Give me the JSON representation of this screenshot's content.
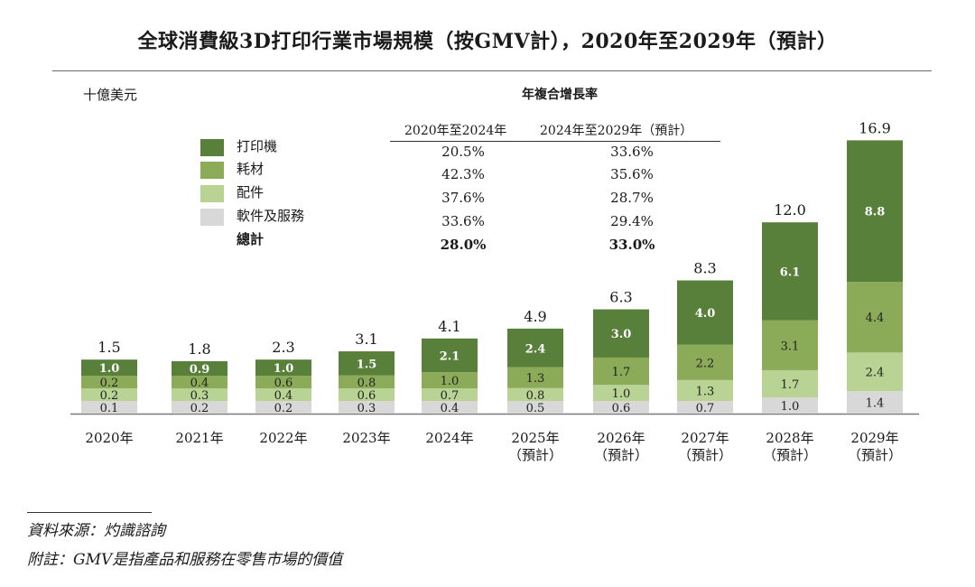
{
  "title": "全球消費級3D打印行業市場規模（按GMV計），2020年至2029年（預計）",
  "unit": "十億美元",
  "colors": {
    "printer": "#58803a",
    "consumables": "#8cab58",
    "accessories": "#b8d393",
    "software": "#d8d8d8",
    "axis": "#7a7a7a"
  },
  "cagr": {
    "title": "年複合增長率",
    "headers": [
      "2020年至2024年",
      "2024年至2029年（預計）"
    ],
    "rows": [
      {
        "label": "打印機",
        "a": "20.5%",
        "b": "33.6%"
      },
      {
        "label": "耗材",
        "a": "42.3%",
        "b": "35.6%"
      },
      {
        "label": "配件",
        "a": "37.6%",
        "b": "28.7%"
      },
      {
        "label": "軟件及服務",
        "a": "33.6%",
        "b": "29.4%"
      },
      {
        "label": "總計",
        "a": "28.0%",
        "b": "33.0%"
      }
    ]
  },
  "chart_data": {
    "type": "bar",
    "stacked": true,
    "title": "全球消費級3D打印行業市場規模（按GMV計），2020年至2029年（預計）",
    "ylabel": "十億美元",
    "ylim": [
      0,
      17
    ],
    "categories": [
      "2020年",
      "2021年",
      "2022年",
      "2023年",
      "2024年",
      "2025年\n（預計）",
      "2026年\n（預計）",
      "2027年\n（預計）",
      "2028年\n（預計）",
      "2029年\n（預計）"
    ],
    "series": [
      {
        "name": "軟件及服務",
        "values": [
          0.1,
          0.2,
          0.2,
          0.3,
          0.4,
          0.5,
          0.6,
          0.7,
          1.0,
          1.4
        ]
      },
      {
        "name": "配件",
        "values": [
          0.2,
          0.3,
          0.4,
          0.6,
          0.7,
          0.8,
          1.0,
          1.3,
          1.7,
          2.4
        ]
      },
      {
        "name": "耗材",
        "values": [
          0.2,
          0.4,
          0.6,
          0.8,
          1.0,
          1.3,
          1.7,
          2.2,
          3.1,
          4.4
        ]
      },
      {
        "name": "打印機",
        "values": [
          1.0,
          0.9,
          1.0,
          1.5,
          2.1,
          2.4,
          3.0,
          4.0,
          6.1,
          8.8
        ]
      }
    ],
    "totals": [
      1.5,
      1.8,
      2.3,
      3.1,
      4.1,
      4.9,
      6.3,
      8.3,
      12.0,
      16.9
    ],
    "legend": [
      "打印機",
      "耗材",
      "配件",
      "軟件及服務"
    ]
  },
  "footer": {
    "source": "資料來源：灼識諮詢",
    "note": "附註：GMV是指產品和服務在零售市場的價值"
  }
}
